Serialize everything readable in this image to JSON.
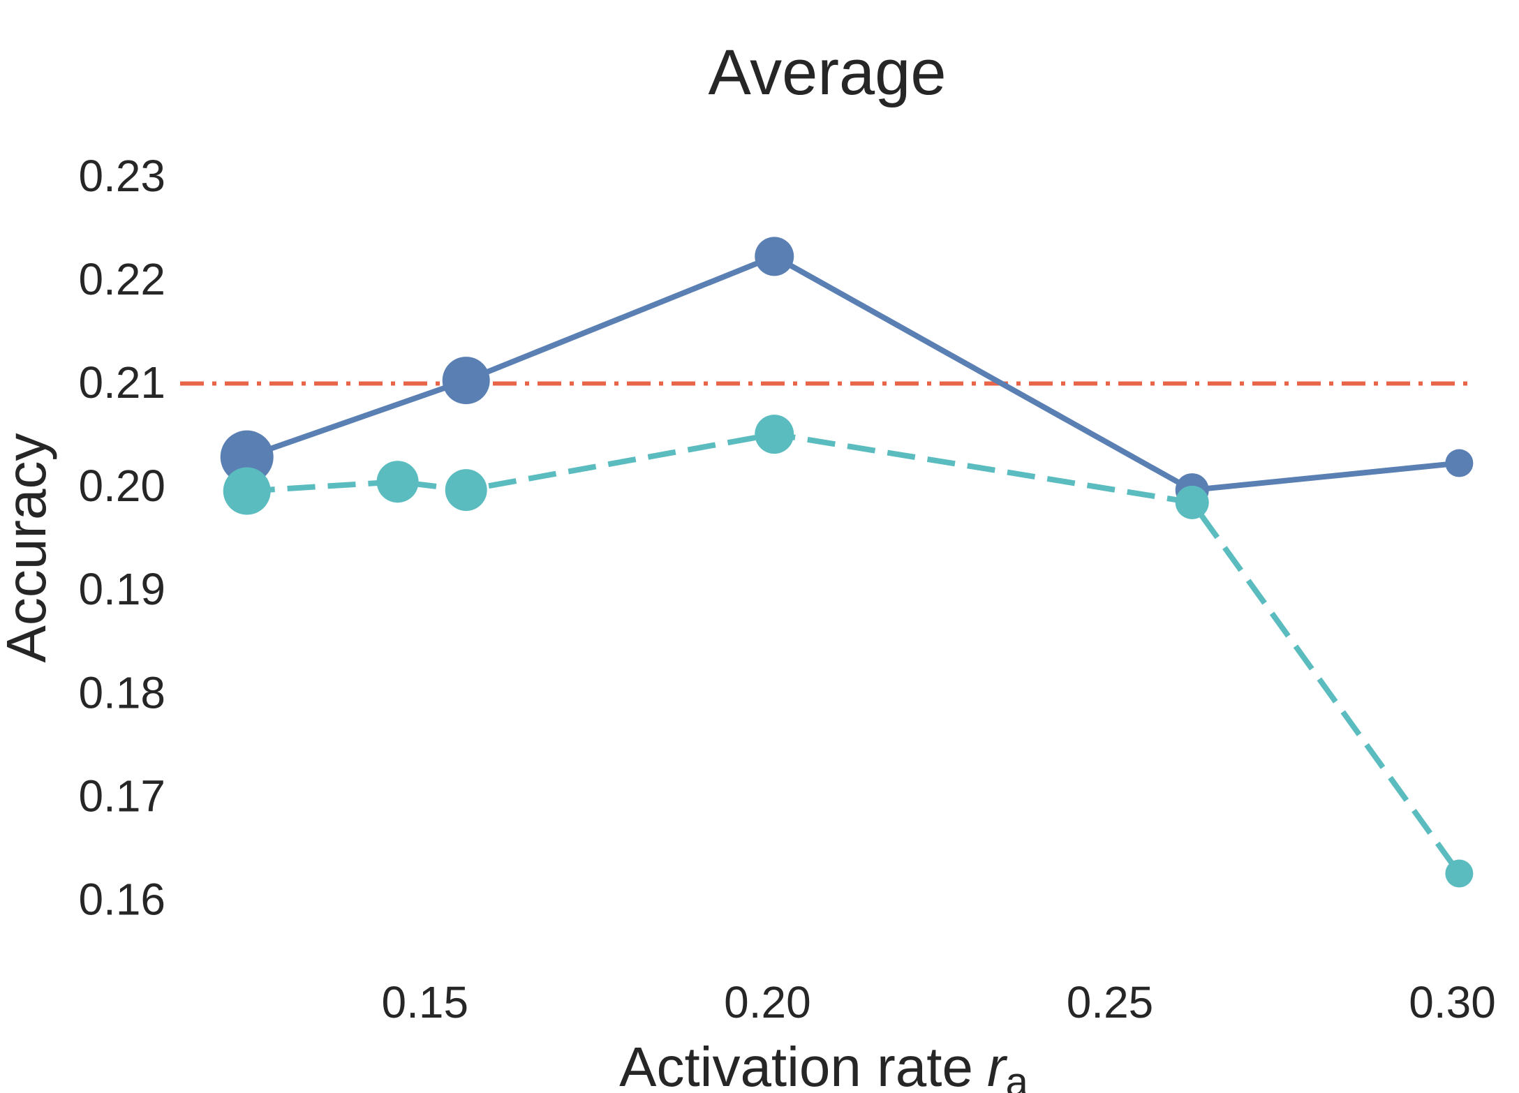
{
  "chart_data": {
    "type": "line",
    "title": "Average",
    "xlabel": "Activation rate",
    "xlabel_symbol": "r",
    "xlabel_subscript": "a",
    "ylabel": "Accuracy",
    "xlim": [
      0.112,
      0.303
    ],
    "ylim": [
      0.1545,
      0.2335
    ],
    "xticks": [
      0.15,
      0.2,
      0.25,
      0.3
    ],
    "xtick_labels": [
      "0.15",
      "0.20",
      "0.25",
      "0.30"
    ],
    "yticks": [
      0.16,
      0.17,
      0.18,
      0.19,
      0.2,
      0.21,
      0.22,
      0.23
    ],
    "ytick_labels": [
      "0.16",
      "0.17",
      "0.18",
      "0.19",
      "0.20",
      "0.21",
      "0.22",
      "0.23"
    ],
    "grid": false,
    "series": [
      {
        "color": "#5a7fb3",
        "line_style": "solid",
        "points": [
          {
            "x": 0.124,
            "y": 0.2028
          },
          {
            "x": 0.156,
            "y": 0.2102
          },
          {
            "x": 0.201,
            "y": 0.2222
          },
          {
            "x": 0.262,
            "y": 0.1996
          },
          {
            "x": 0.301,
            "y": 0.2022
          }
        ]
      },
      {
        "color": "#5bbcbf",
        "line_style": "dashed",
        "points": [
          {
            "x": 0.124,
            "y": 0.1995
          },
          {
            "x": 0.146,
            "y": 0.2004
          },
          {
            "x": 0.156,
            "y": 0.1996
          },
          {
            "x": 0.201,
            "y": 0.205
          },
          {
            "x": 0.262,
            "y": 0.1984
          },
          {
            "x": 0.301,
            "y": 0.1625
          }
        ]
      }
    ],
    "reference_line": {
      "y": 0.2099,
      "color": "#e8654a",
      "line_style": "dashdot"
    }
  }
}
